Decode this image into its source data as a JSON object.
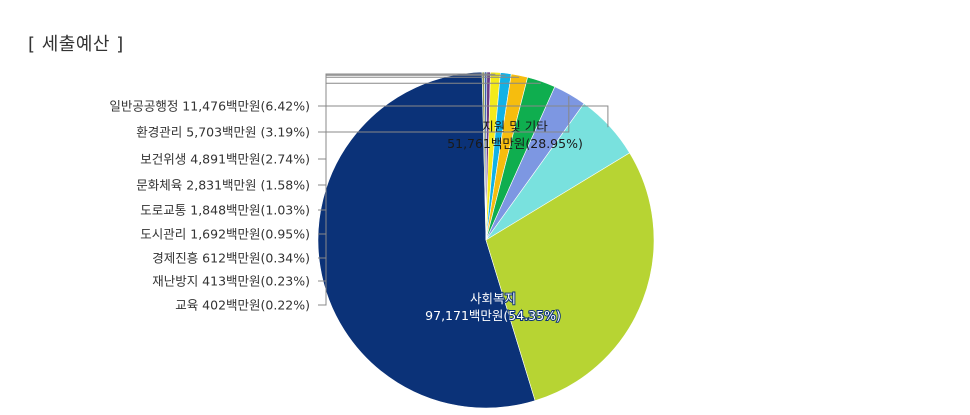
{
  "title": "[ 세출예산 ]",
  "chart_data": {
    "type": "pie",
    "unit": "백만원",
    "slices": [
      {
        "name": "사회복지",
        "value": 97171,
        "value_text": "97,171백만원",
        "percent": "54.35%",
        "color": "#0b3278",
        "label_style": "inside"
      },
      {
        "name": "교육",
        "value": 402,
        "value_text": "402백만원",
        "percent": "0.22%",
        "color": "#8d9a4f",
        "label_style": "outside"
      },
      {
        "name": "재난방지",
        "value": 413,
        "value_text": "413백만원",
        "percent": "0.23%",
        "color": "#3d5fa8",
        "label_style": "outside"
      },
      {
        "name": "경제진흥",
        "value": 612,
        "value_text": "612백만원",
        "percent": "0.34%",
        "color": "#6b3a86",
        "label_style": "outside"
      },
      {
        "name": "도시관리",
        "value": 1692,
        "value_text": "1,692백만원",
        "percent": "0.95%",
        "color": "#f4ea1a",
        "label_style": "outside"
      },
      {
        "name": "도로교통",
        "value": 1848,
        "value_text": "1,848백만원",
        "percent": "1.03%",
        "color": "#12b2e6",
        "label_style": "outside"
      },
      {
        "name": "문화체육",
        "value": 2831,
        "value_text": "2,831백만원",
        "percent": "1.58%",
        "color": "#f6bd0e",
        "label_style": "outside"
      },
      {
        "name": "보건위생",
        "value": 4891,
        "value_text": "4,891백만원",
        "percent": "2.74%",
        "color": "#0fae4f",
        "label_style": "outside"
      },
      {
        "name": "환경관리",
        "value": 5703,
        "value_text": "5,703백만원",
        "percent": "3.19%",
        "color": "#7d97e2",
        "label_style": "outside"
      },
      {
        "name": "일반공공행정",
        "value": 11476,
        "value_text": "11,476백만원",
        "percent": "6.42%",
        "color": "#79e1de",
        "label_style": "outside"
      },
      {
        "name": "지원 및 기타",
        "value": 51761,
        "value_text": "51,761백만원",
        "percent": "28.95%",
        "color": "#b7d433",
        "label_style": "inside"
      }
    ],
    "outside_labels": [
      {
        "text": "일반공공행정 11,476백만원(6.42%)"
      },
      {
        "text": "환경관리 5,703백만원 (3.19%)"
      },
      {
        "text": "보건위생 4,891백만원(2.74%)"
      },
      {
        "text": "문화체육 2,831백만원 (1.58%)"
      },
      {
        "text": "도로교통 1,848백만원(1.03%)"
      },
      {
        "text": "도시관리 1,692백만원(0.95%)"
      },
      {
        "text": "경제진흥 612백만원(0.34%)"
      },
      {
        "text": "재난방지 413백만원(0.23%)"
      },
      {
        "text": "교육 402백만원(0.22%)"
      }
    ]
  }
}
